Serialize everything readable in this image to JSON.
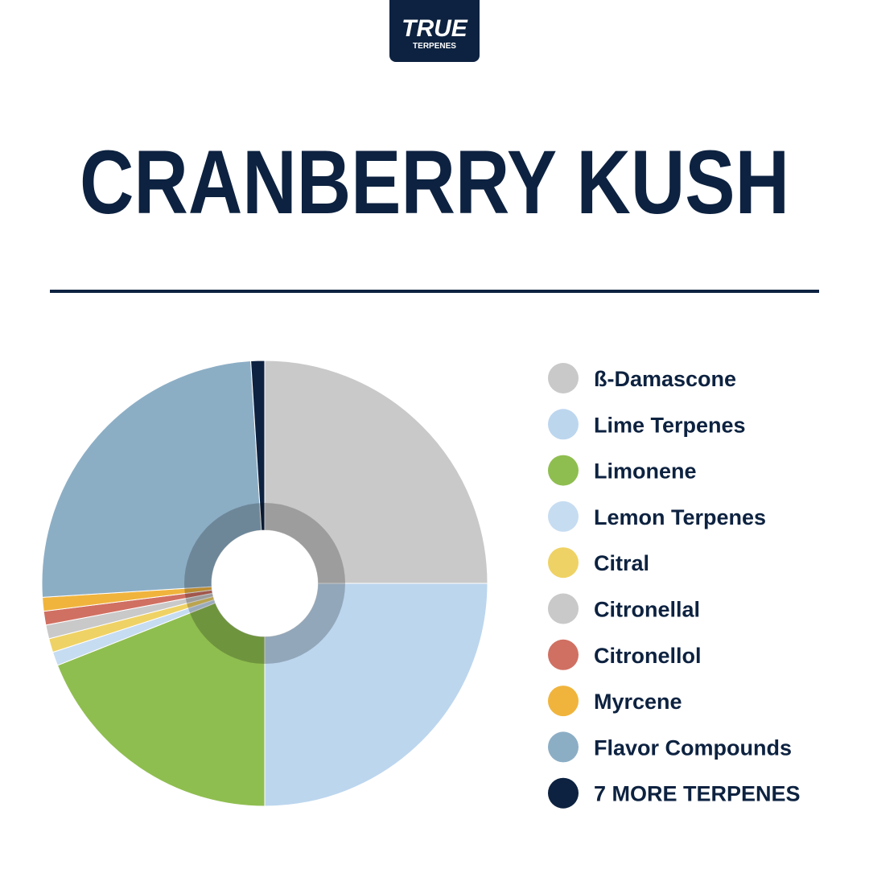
{
  "logo": {
    "line1": "TRUE",
    "line2": "TERPENES"
  },
  "chart_data": {
    "type": "pie",
    "title": "CRANBERRY KUSH",
    "categories": [
      "ß-Damascone",
      "Lime Terpenes",
      "Limonene",
      "Lemon Terpenes",
      "Citral",
      "Citronellal",
      "Citronellol",
      "Myrcene",
      "Flavor Compounds",
      "7 MORE TERPENES"
    ],
    "values": [
      25,
      25,
      19,
      1,
      1,
      1,
      1,
      1,
      25,
      1
    ],
    "colors": [
      "#c9c9c9",
      "#bcd6ee",
      "#8fbe50",
      "#c6dcf1",
      "#efd265",
      "#c9c9c9",
      "#d07062",
      "#f0b43d",
      "#8caec5",
      "#0d2240"
    ],
    "legend": "right"
  }
}
